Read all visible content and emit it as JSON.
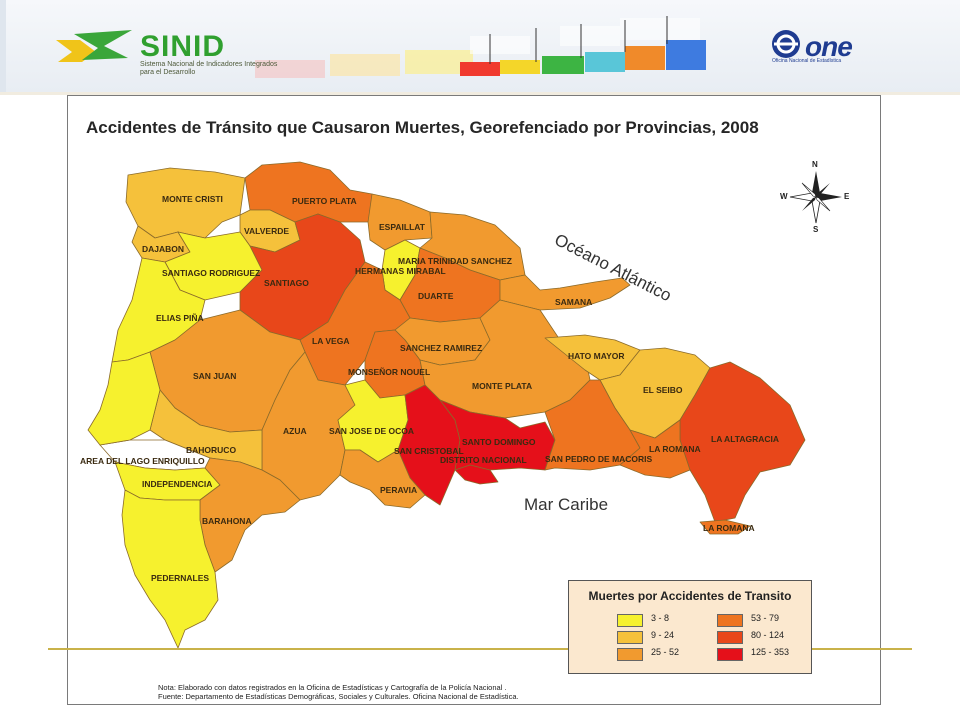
{
  "banner": {
    "sinid_name": "SINID",
    "sinid_sub": "Sistema Nacional de Indicadores Integrados para el Desarrollo",
    "one_name": "one",
    "one_sub": "Oficina Nacional de Estadística",
    "bar_colors": [
      "#f2a7a7",
      "#f7d27a",
      "#f7e04a",
      "#94d65a",
      "#3fb64a",
      "#5ec8d6",
      "#f08a2a",
      "#3e7be0"
    ]
  },
  "map": {
    "title": "Accidentes de Tránsito que Causaron Muertes,  Georefenciado por Provincias, 2008",
    "ocean_label": "Océano Atlántico",
    "sea_label": "Mar Caribe",
    "compass": {
      "n": "N",
      "s": "S",
      "e": "E",
      "w": "W"
    },
    "provinces": [
      {
        "name": "MONTE CRISTI",
        "class": "9 - 24"
      },
      {
        "name": "PUERTO PLATA",
        "class": "53 - 79"
      },
      {
        "name": "VALVERDE",
        "class": "9 - 24"
      },
      {
        "name": "ESPAILLAT",
        "class": "25 - 52"
      },
      {
        "name": "DAJABON",
        "class": "9 - 24"
      },
      {
        "name": "SANTIAGO RODRIGUEZ",
        "class": "3 - 8"
      },
      {
        "name": "SANTIAGO",
        "class": "80 - 124"
      },
      {
        "name": "HERMANAS MIRABAL",
        "class": "3 - 8"
      },
      {
        "name": "MARIA TRINIDAD SANCHEZ",
        "class": "25 - 52"
      },
      {
        "name": "DUARTE",
        "class": "53 - 79"
      },
      {
        "name": "SAMANA",
        "class": "25 - 52"
      },
      {
        "name": "ELIAS PIÑA",
        "class": "3 - 8"
      },
      {
        "name": "LA VEGA",
        "class": "53 - 79"
      },
      {
        "name": "SANCHEZ RAMIREZ",
        "class": "25 - 52"
      },
      {
        "name": "HATO MAYOR",
        "class": "9 - 24"
      },
      {
        "name": "SAN JUAN",
        "class": "25 - 52"
      },
      {
        "name": "MONSEÑOR NOUEL",
        "class": "53 - 79"
      },
      {
        "name": "MONTE PLATA",
        "class": "25 - 52"
      },
      {
        "name": "EL SEIBO",
        "class": "9 - 24"
      },
      {
        "name": "AZUA",
        "class": "25 - 52"
      },
      {
        "name": "SAN JOSE DE OCOA",
        "class": "3 - 8"
      },
      {
        "name": "SANTO DOMINGO",
        "class": "125 - 353"
      },
      {
        "name": "LA ALTAGRACIA",
        "class": "80 - 124"
      },
      {
        "name": "BAHORUCO",
        "class": "9 - 24"
      },
      {
        "name": "SAN CRISTOBAL",
        "class": "125 - 353"
      },
      {
        "name": "DISTRITO NACIONAL",
        "class": "125 - 353"
      },
      {
        "name": "SAN PEDRO DE MACORIS",
        "class": "53 - 79"
      },
      {
        "name": "LA ROMANA",
        "class": "53 - 79"
      },
      {
        "name": "AREA DEL LAGO ENRIQUILLO",
        "class": ""
      },
      {
        "name": "INDEPENDENCIA",
        "class": "3 - 8"
      },
      {
        "name": "PERAVIA",
        "class": "25 - 52"
      },
      {
        "name": "BARAHONA",
        "class": "25 - 52"
      },
      {
        "name": "PEDERNALES",
        "class": "3 - 8"
      }
    ]
  },
  "legend": {
    "title": "Muertes por Accidentes de Transito",
    "items": [
      {
        "label": "3 - 8",
        "color": "#f6f12e"
      },
      {
        "label": "9 - 24",
        "color": "#f5c13b"
      },
      {
        "label": "25 - 52",
        "color": "#f19a2f"
      },
      {
        "label": "53 - 79",
        "color": "#ee7420"
      },
      {
        "label": "80 - 124",
        "color": "#e8471a"
      },
      {
        "label": "125 - 353",
        "color": "#e5101a"
      }
    ]
  },
  "notes": {
    "line1": "Nota: Elaborado con datos registrados en la Oficina de Estadísticas y Cartografía de la Policía Nacional .",
    "line2": "Fuente: Departamento de Estadísticas Demográficas, Sociales y Culturales. Oficina Nacional de Estadística."
  }
}
